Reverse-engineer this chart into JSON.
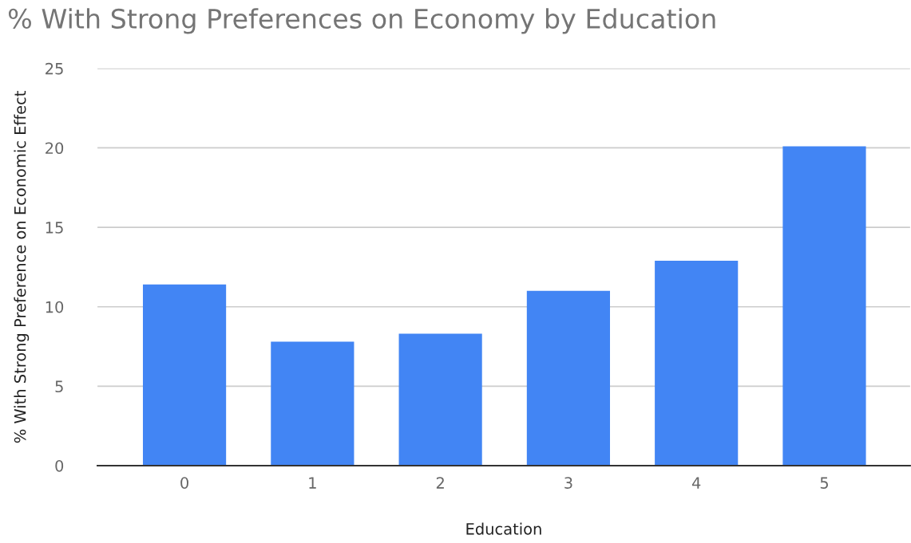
{
  "chart_data": {
    "type": "bar",
    "title": "% With Strong Preferences on Economy by Education",
    "xlabel": "Education",
    "ylabel": "% With Strong Preference on Economic Effect",
    "categories": [
      "0",
      "1",
      "2",
      "3",
      "4",
      "5"
    ],
    "values": [
      11.4,
      7.8,
      8.3,
      11.0,
      12.9,
      20.1
    ],
    "color": "#4285f4",
    "ylim": [
      0,
      25
    ],
    "yticks": [
      0,
      5,
      10,
      15,
      20,
      25
    ],
    "grid": "y",
    "legend": false
  }
}
